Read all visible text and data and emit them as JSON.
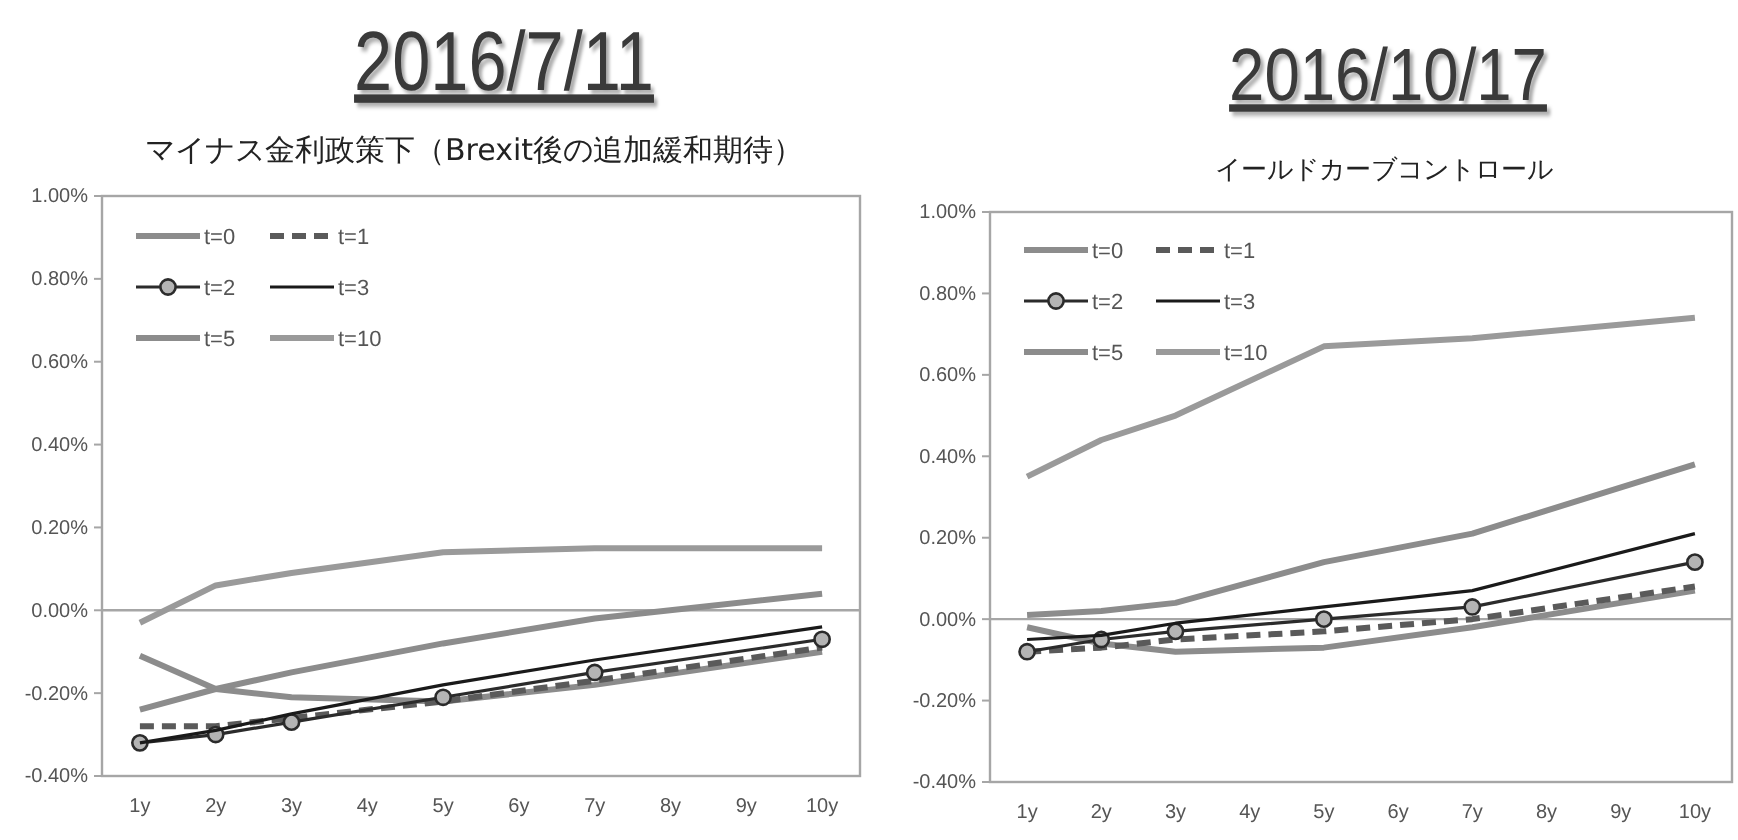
{
  "chart_data": [
    {
      "type": "line",
      "title": "2016/7/11",
      "subtitle": "マイナス金利政策下（Brexit後の追加緩和期待）",
      "xlim": [
        0.5,
        10.5
      ],
      "xticks": [
        {
          "value": 1,
          "label": "1y"
        },
        {
          "value": 2,
          "label": "2y"
        },
        {
          "value": 3,
          "label": "3y"
        },
        {
          "value": 4,
          "label": "4y"
        },
        {
          "value": 5,
          "label": "5y"
        },
        {
          "value": 6,
          "label": "6y"
        },
        {
          "value": 7,
          "label": "7y"
        },
        {
          "value": 8,
          "label": "8y"
        },
        {
          "value": 9,
          "label": "9y"
        },
        {
          "value": 10,
          "label": "10y"
        }
      ],
      "ylim": [
        -0.4,
        1.0
      ],
      "yticks": [
        {
          "value": -0.4,
          "label": "-0.40%"
        },
        {
          "value": -0.2,
          "label": "-0.20%"
        },
        {
          "value": 0,
          "label": "0.00%"
        },
        {
          "value": 0.2,
          "label": "0.20%"
        },
        {
          "value": 0.4,
          "label": "0.40%"
        },
        {
          "value": 0.6,
          "label": "0.60%"
        },
        {
          "value": 0.8,
          "label": "0.80%"
        },
        {
          "value": 1.0,
          "label": "1.00%"
        }
      ],
      "legend": "top left",
      "ref_lines": [
        {
          "axis": "y",
          "value": 0,
          "color": "#a6a6a6"
        }
      ],
      "series": [
        {
          "name": "t=0",
          "color": "#8c8c8c",
          "x": [
            1,
            2,
            3,
            5,
            7,
            10
          ],
          "values": [
            -0.11,
            -0.19,
            -0.21,
            -0.22,
            -0.18,
            -0.1
          ]
        },
        {
          "name": "t=1",
          "color": "#5a5a5a",
          "line_style": "dashed",
          "x": [
            1,
            2,
            3,
            5,
            7,
            10
          ],
          "values": [
            -0.28,
            -0.28,
            -0.26,
            -0.22,
            -0.17,
            -0.09
          ]
        },
        {
          "name": "t=2",
          "color": "#2b2b2b",
          "marker": "circle",
          "x": [
            1,
            2,
            3,
            5,
            7,
            10
          ],
          "values": [
            -0.32,
            -0.3,
            -0.27,
            -0.21,
            -0.15,
            -0.07
          ]
        },
        {
          "name": "t=3",
          "color": "#1a1a1a",
          "x": [
            1,
            2,
            3,
            5,
            7,
            10
          ],
          "values": [
            -0.32,
            -0.29,
            -0.25,
            -0.18,
            -0.12,
            -0.04
          ]
        },
        {
          "name": "t=5",
          "color": "#8c8c8c",
          "x": [
            1,
            2,
            3,
            5,
            7,
            10
          ],
          "values": [
            -0.24,
            -0.19,
            -0.15,
            -0.08,
            -0.02,
            0.04
          ]
        },
        {
          "name": "t=10",
          "color": "#9a9a9a",
          "x": [
            1,
            2,
            3,
            5,
            7,
            10
          ],
          "values": [
            -0.03,
            0.06,
            0.09,
            0.14,
            0.15,
            0.15
          ]
        }
      ]
    },
    {
      "type": "line",
      "title": "2016/10/17",
      "subtitle": "イールドカーブコントロール",
      "xlim": [
        0.5,
        10.5
      ],
      "xticks": [
        {
          "value": 1,
          "label": "1y"
        },
        {
          "value": 2,
          "label": "2y"
        },
        {
          "value": 3,
          "label": "3y"
        },
        {
          "value": 4,
          "label": "4y"
        },
        {
          "value": 5,
          "label": "5y"
        },
        {
          "value": 6,
          "label": "6y"
        },
        {
          "value": 7,
          "label": "7y"
        },
        {
          "value": 8,
          "label": "8y"
        },
        {
          "value": 9,
          "label": "9y"
        },
        {
          "value": 10,
          "label": "10y"
        }
      ],
      "ylim": [
        -0.4,
        1.0
      ],
      "yticks": [
        {
          "value": -0.4,
          "label": "-0.40%"
        },
        {
          "value": -0.2,
          "label": "-0.20%"
        },
        {
          "value": 0,
          "label": "0.00%"
        },
        {
          "value": 0.2,
          "label": "0.20%"
        },
        {
          "value": 0.4,
          "label": "0.40%"
        },
        {
          "value": 0.6,
          "label": "0.60%"
        },
        {
          "value": 0.8,
          "label": "0.80%"
        },
        {
          "value": 1.0,
          "label": "1.00%"
        }
      ],
      "legend": "top left",
      "ref_lines": [
        {
          "axis": "y",
          "value": 0,
          "color": "#a6a6a6"
        }
      ],
      "series": [
        {
          "name": "t=0",
          "color": "#8c8c8c",
          "x": [
            1,
            2,
            3,
            5,
            7,
            10
          ],
          "values": [
            -0.02,
            -0.06,
            -0.08,
            -0.07,
            -0.02,
            0.07
          ]
        },
        {
          "name": "t=1",
          "color": "#5a5a5a",
          "line_style": "dashed",
          "x": [
            1,
            2,
            3,
            5,
            7,
            10
          ],
          "values": [
            -0.08,
            -0.07,
            -0.05,
            -0.03,
            0.0,
            0.08
          ]
        },
        {
          "name": "t=2",
          "color": "#2b2b2b",
          "marker": "circle",
          "x": [
            1,
            2,
            3,
            5,
            7,
            10
          ],
          "values": [
            -0.08,
            -0.05,
            -0.03,
            0.0,
            0.03,
            0.14
          ]
        },
        {
          "name": "t=3",
          "color": "#1a1a1a",
          "x": [
            1,
            2,
            3,
            5,
            7,
            10
          ],
          "values": [
            -0.05,
            -0.04,
            -0.01,
            0.03,
            0.07,
            0.21
          ]
        },
        {
          "name": "t=5",
          "color": "#8c8c8c",
          "x": [
            1,
            2,
            3,
            5,
            7,
            10
          ],
          "values": [
            0.01,
            0.02,
            0.04,
            0.14,
            0.21,
            0.38
          ]
        },
        {
          "name": "t=10",
          "color": "#9a9a9a",
          "x": [
            1,
            2,
            3,
            5,
            7,
            10
          ],
          "values": [
            0.35,
            0.44,
            0.5,
            0.67,
            0.69,
            0.74
          ]
        }
      ]
    }
  ]
}
